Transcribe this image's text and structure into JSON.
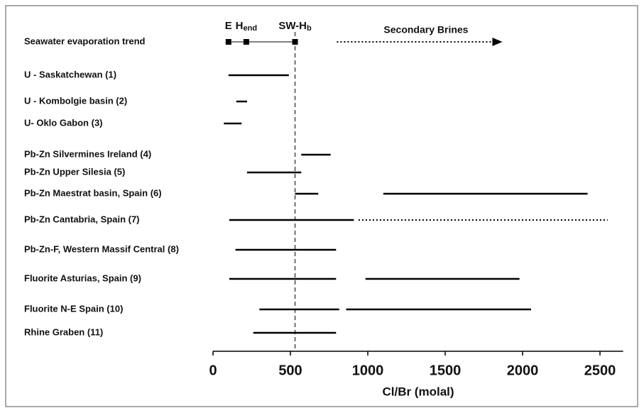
{
  "chart_data": {
    "type": "range",
    "xlabel": "Cl/Br (molal)",
    "xlim": [
      0,
      2650
    ],
    "xticks": [
      0,
      500,
      1000,
      1500,
      2000,
      2500
    ],
    "reference_line": 530,
    "color": "#000000",
    "trend": {
      "label": "Seawater evaporation trend",
      "points": [
        {
          "label": "E",
          "value": 100
        },
        {
          "label": "H",
          "subscript": "end",
          "value": 215
        },
        {
          "label": "SW-H",
          "subscript": "b",
          "value": 530
        }
      ],
      "secondary": {
        "label": "Secondary Brines",
        "range": [
          800,
          1860
        ]
      }
    },
    "rows": [
      {
        "label": "U - Saskatchewan (1)",
        "ranges": [
          [
            100,
            490
          ]
        ]
      },
      {
        "label": "U - Kombolgie basin (2)",
        "ranges": [
          [
            150,
            220
          ]
        ]
      },
      {
        "label": "U- Oklo Gabon (3)",
        "ranges": [
          [
            70,
            185
          ]
        ]
      },
      {
        "label": "Pb-Zn Silvermines Ireland (4)",
        "ranges": [
          [
            570,
            760
          ]
        ]
      },
      {
        "label": "Pb-Zn Upper Silesia (5)",
        "ranges": [
          [
            220,
            570
          ]
        ]
      },
      {
        "label": "Pb-Zn Maestrat basin, Spain (6)",
        "ranges": [
          [
            530,
            680
          ],
          [
            1100,
            2420
          ]
        ]
      },
      {
        "label": "Pb-Zn Cantabria, Spain (7)",
        "ranges": [
          [
            105,
            910
          ]
        ],
        "dotted_ranges": [
          [
            940,
            2550
          ]
        ]
      },
      {
        "label": "Pb-Zn-F, Western Massif Central (8)",
        "ranges": [
          [
            145,
            795
          ]
        ]
      },
      {
        "label": "Fluorite Asturias, Spain (9)",
        "ranges": [
          [
            105,
            795
          ],
          [
            985,
            1980
          ]
        ]
      },
      {
        "label": "Fluorite N-E Spain (10)",
        "ranges": [
          [
            300,
            815
          ],
          [
            860,
            2055
          ]
        ]
      },
      {
        "label": "Rhine Graben (11)",
        "ranges": [
          [
            260,
            795
          ]
        ]
      }
    ]
  }
}
